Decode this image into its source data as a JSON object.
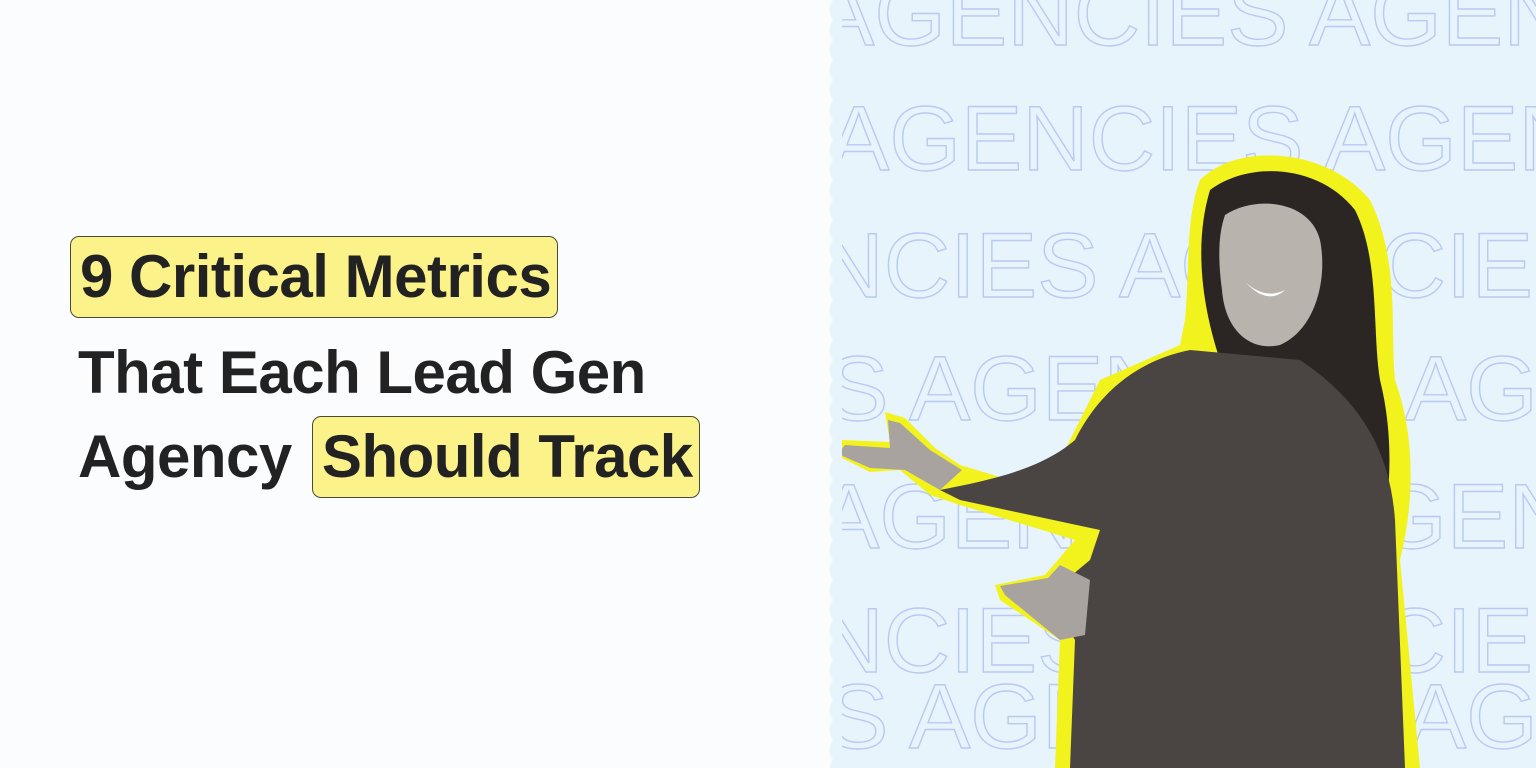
{
  "title": {
    "line1_highlight": "9 Critical Metrics",
    "line2": "That Each Lead Gen",
    "line3_plain": "Agency",
    "line3_highlight": "Should Track"
  },
  "background_word": "AGENCIES",
  "colors": {
    "highlight": "#fbf28a",
    "text": "#222222",
    "panel": "#e8f4fb",
    "outline_text": "#b9c9f3",
    "person_outline": "#f2f21c"
  }
}
